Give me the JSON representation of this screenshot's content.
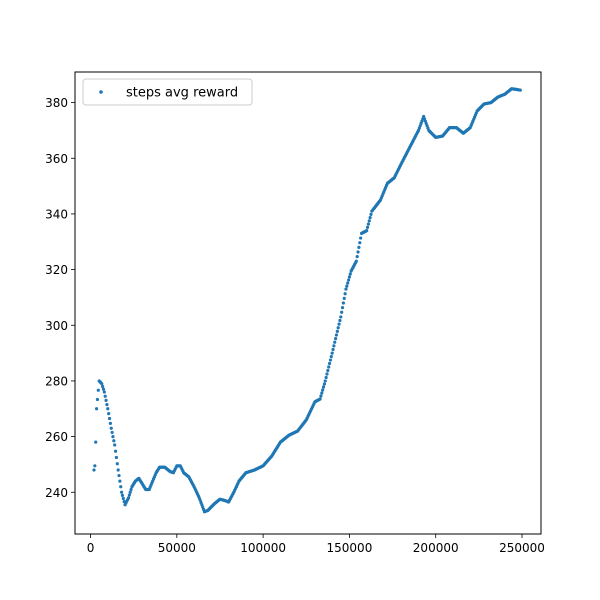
{
  "chart_data": {
    "type": "scatter",
    "title": "",
    "xlabel": "",
    "ylabel": "",
    "xlim": [
      -9000,
      261000
    ],
    "ylim": [
      225,
      391
    ],
    "xticks": [
      0,
      50000,
      100000,
      150000,
      200000,
      250000
    ],
    "xtick_labels": [
      "0",
      "50000",
      "100000",
      "150000",
      "200000",
      "250000"
    ],
    "yticks": [
      240,
      260,
      280,
      300,
      320,
      340,
      360,
      380
    ],
    "ytick_labels": [
      "240",
      "260",
      "280",
      "300",
      "320",
      "340",
      "360",
      "380"
    ],
    "legend": {
      "position": "top-left",
      "entries": [
        "steps avg reward"
      ]
    },
    "grid": false,
    "series": [
      {
        "name": "steps avg reward",
        "color": "#1f77b4",
        "anchors": [
          [
            2000,
            248
          ],
          [
            2500,
            249.5
          ],
          [
            3000,
            258
          ],
          [
            3500,
            270
          ],
          [
            5000,
            280
          ],
          [
            6500,
            279
          ],
          [
            8000,
            276
          ],
          [
            10000,
            270
          ],
          [
            12000,
            263
          ],
          [
            14000,
            257
          ],
          [
            16000,
            248
          ],
          [
            18000,
            240
          ],
          [
            20000,
            235.5
          ],
          [
            22000,
            238
          ],
          [
            24000,
            242
          ],
          [
            26000,
            244
          ],
          [
            28000,
            245
          ],
          [
            30000,
            243
          ],
          [
            32000,
            241
          ],
          [
            34000,
            241
          ],
          [
            36000,
            244
          ],
          [
            38000,
            247
          ],
          [
            40000,
            249
          ],
          [
            43000,
            249
          ],
          [
            46000,
            247.5
          ],
          [
            48000,
            247
          ],
          [
            50000,
            249.5
          ],
          [
            52000,
            249.5
          ],
          [
            54000,
            247
          ],
          [
            57000,
            245.5
          ],
          [
            60000,
            242
          ],
          [
            63000,
            238
          ],
          [
            66000,
            233
          ],
          [
            68000,
            233.5
          ],
          [
            72000,
            236
          ],
          [
            75000,
            237.5
          ],
          [
            78000,
            237
          ],
          [
            80000,
            236.5
          ],
          [
            83000,
            240
          ],
          [
            86000,
            244
          ],
          [
            90000,
            247
          ],
          [
            95000,
            248
          ],
          [
            100000,
            249.5
          ],
          [
            105000,
            253
          ],
          [
            110000,
            258
          ],
          [
            115000,
            260.5
          ],
          [
            120000,
            262
          ],
          [
            125000,
            266
          ],
          [
            130000,
            272.5
          ],
          [
            133000,
            273.5
          ],
          [
            136000,
            280
          ],
          [
            140000,
            290
          ],
          [
            145000,
            303
          ],
          [
            148000,
            313
          ],
          [
            151000,
            319.5
          ],
          [
            154000,
            323
          ],
          [
            157000,
            333
          ],
          [
            160000,
            334
          ],
          [
            163000,
            341
          ],
          [
            168000,
            345
          ],
          [
            172000,
            351
          ],
          [
            176000,
            353
          ],
          [
            180000,
            358
          ],
          [
            185000,
            364
          ],
          [
            190000,
            370
          ],
          [
            193000,
            375
          ],
          [
            196000,
            370
          ],
          [
            200000,
            367.5
          ],
          [
            204000,
            368
          ],
          [
            208000,
            371
          ],
          [
            212000,
            371
          ],
          [
            216000,
            369
          ],
          [
            220000,
            371
          ],
          [
            224000,
            377
          ],
          [
            228000,
            379.5
          ],
          [
            232000,
            380
          ],
          [
            236000,
            382
          ],
          [
            240000,
            383
          ],
          [
            244000,
            385
          ],
          [
            249000,
            384.5
          ]
        ]
      }
    ]
  }
}
